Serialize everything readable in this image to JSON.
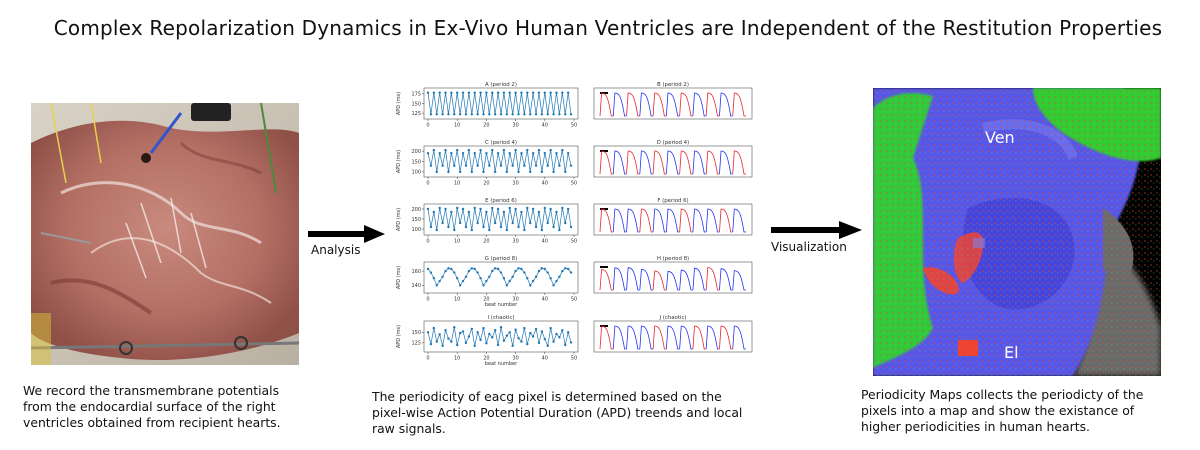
{
  "title": "Complex Repolarization Dynamics in Ex-Vivo Human Ventricles are Independent of the Restitution Properties",
  "arrow_labels": {
    "analysis": "Analysis",
    "visualization": "Visualization"
  },
  "map_labels": {
    "ven": "Ven",
    "el": "El"
  },
  "captions": {
    "left": [
      "We record the transmembrane potentials",
      "from the endocardial surface of the right",
      "ventricles obtained from recipient hearts."
    ],
    "middle": [
      "The periodicity of eacg pixel is determined based on the",
      "pixel-wise Action Potential Duration (APD) treends and local",
      "raw signals."
    ],
    "right": [
      "Periodicity Maps collects the periodicty of the",
      "pixels into a map and show the existance of",
      "higher periodicities in human hearts."
    ]
  },
  "colors": {
    "series": "#1f77b4",
    "signal_blue": "#2233ee",
    "signal_red": "#e8242a",
    "map_blue": "#5a5aee",
    "map_green": "#33cc33",
    "map_red": "#ee4433"
  },
  "chart_data": [
    {
      "type": "line",
      "title": "A (period 2)",
      "ylabel": "APD (ms)",
      "ylim": [
        115,
        185
      ],
      "yticks": [
        125,
        150,
        175
      ],
      "xticks": [
        0,
        10,
        20,
        30,
        40,
        50
      ],
      "xlim": [
        0,
        50
      ],
      "period": 2,
      "values": [
        178,
        122
      ]
    },
    {
      "type": "line",
      "title": "B (period 2)",
      "kind": "signal",
      "period": 2
    },
    {
      "type": "line",
      "title": "C (period 4)",
      "ylabel": "APD (ms)",
      "ylim": [
        85,
        215
      ],
      "yticks": [
        100,
        150,
        200
      ],
      "xticks": [
        0,
        10,
        20,
        30,
        40,
        50
      ],
      "xlim": [
        0,
        50
      ],
      "period": 4,
      "values": [
        190,
        130,
        205,
        100
      ]
    },
    {
      "type": "line",
      "title": "D (period 4)",
      "kind": "signal",
      "period": 4
    },
    {
      "type": "line",
      "title": "E (period 6)",
      "ylabel": "APD (ms)",
      "ylim": [
        80,
        215
      ],
      "yticks": [
        100,
        150,
        200
      ],
      "xticks": [
        0,
        10,
        20,
        30,
        40,
        50
      ],
      "xlim": [
        0,
        50
      ],
      "period": 6,
      "values": [
        200,
        110,
        185,
        95,
        205,
        130
      ]
    },
    {
      "type": "line",
      "title": "F (period 6)",
      "kind": "signal",
      "period": 6
    },
    {
      "type": "line",
      "title": "G (period 8)",
      "ylabel": "APD (ms)",
      "xlabel": "beat number",
      "ylim": [
        132,
        170
      ],
      "yticks": [
        140,
        160
      ],
      "xticks": [
        0,
        10,
        20,
        30,
        40,
        50
      ],
      "xlim": [
        0,
        50
      ],
      "period": 8,
      "values": [
        163,
        158,
        150,
        140,
        146,
        152,
        160,
        164
      ]
    },
    {
      "type": "line",
      "title": "H (period 8)",
      "kind": "signal",
      "period": 8
    },
    {
      "type": "line",
      "title": "I (chaotic)",
      "ylabel": "APD (ms)",
      "xlabel": "beat number",
      "ylim": [
        108,
        172
      ],
      "yticks": [
        125,
        150
      ],
      "xticks": [
        0,
        10,
        20,
        30,
        40,
        50
      ],
      "xlim": [
        0,
        50
      ],
      "period": 0,
      "values": [
        150,
        122,
        160,
        128,
        145,
        118,
        155,
        135,
        128,
        162,
        120,
        148,
        152,
        125,
        140,
        158,
        118,
        150,
        132,
        160,
        124,
        146,
        138,
        155,
        120,
        162,
        130,
        142,
        150,
        118,
        156,
        136,
        128,
        160,
        122,
        148,
        140,
        158,
        125,
        152,
        134,
        118,
        160,
        128,
        146,
        138,
        155,
        120,
        150,
        126,
        145
      ]
    },
    {
      "type": "line",
      "title": "J (chaotic)",
      "kind": "signal",
      "period": 0
    }
  ]
}
